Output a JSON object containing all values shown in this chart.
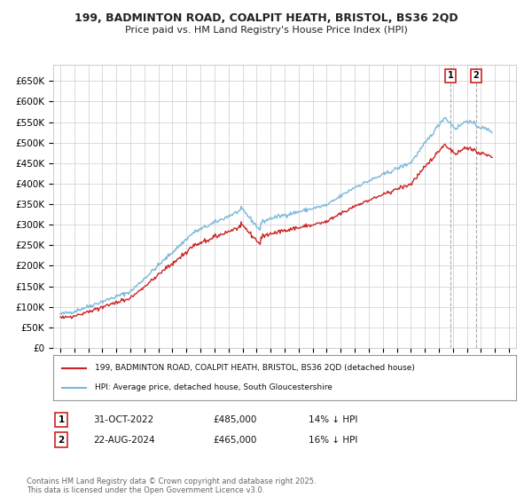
{
  "title_line1": "199, BADMINTON ROAD, COALPIT HEATH, BRISTOL, BS36 2QD",
  "title_line2": "Price paid vs. HM Land Registry's House Price Index (HPI)",
  "ytick_labels": [
    "£0",
    "£50K",
    "£100K",
    "£150K",
    "£200K",
    "£250K",
    "£300K",
    "£350K",
    "£400K",
    "£450K",
    "£500K",
    "£550K",
    "£600K",
    "£650K"
  ],
  "yticks": [
    0,
    50000,
    100000,
    150000,
    200000,
    250000,
    300000,
    350000,
    400000,
    450000,
    500000,
    550000,
    600000,
    650000
  ],
  "ylim": [
    0,
    690000
  ],
  "xlim_min": 1994.5,
  "xlim_max": 2027.5,
  "hpi_color": "#7ab8d9",
  "price_color": "#cc2222",
  "legend_label_price": "199, BADMINTON ROAD, COALPIT HEATH, BRISTOL, BS36 2QD (detached house)",
  "legend_label_hpi": "HPI: Average price, detached house, South Gloucestershire",
  "annotation1_label": "1",
  "annotation1_date": "31-OCT-2022",
  "annotation1_price": "£485,000",
  "annotation1_note": "14% ↓ HPI",
  "annotation2_label": "2",
  "annotation2_date": "22-AUG-2024",
  "annotation2_price": "£465,000",
  "annotation2_note": "16% ↓ HPI",
  "footer": "Contains HM Land Registry data © Crown copyright and database right 2025.\nThis data is licensed under the Open Government Licence v3.0.",
  "background_color": "#ffffff",
  "grid_color": "#cccccc",
  "sale1_x": 2022.83,
  "sale1_y": 485000,
  "sale2_x": 2024.64,
  "sale2_y": 465000,
  "vline_color": "#aaaaaa",
  "box_edge_color": "#cc2222"
}
